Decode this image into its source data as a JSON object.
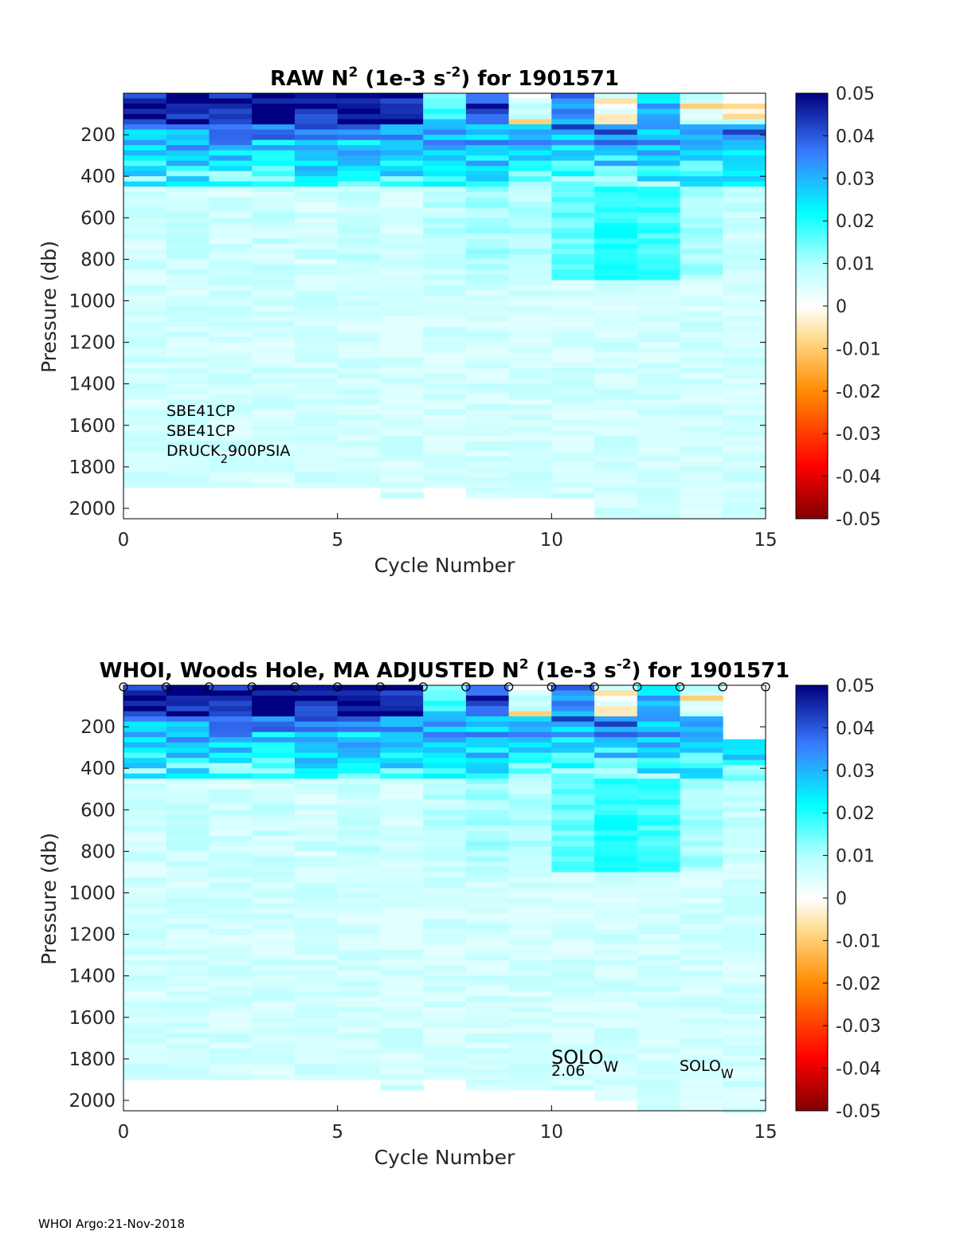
{
  "footer": "WHOI Argo:21-Nov-2018",
  "colorbar": {
    "ticks": [
      "0.05",
      "0.04",
      "0.03",
      "0.02",
      "0.01",
      "0",
      "-0.01",
      "-0.02",
      "-0.03",
      "-0.04",
      "-0.05"
    ]
  },
  "chart_data": [
    {
      "type": "heatmap",
      "title_parts": {
        "a": "RAW N",
        "sup1": "2",
        "b": " (1e-3 s",
        "sup2": "-2",
        "c": ") for 1901571"
      },
      "xlabel": "Cycle Number",
      "ylabel": "Pressure (db)",
      "xlim": [
        0,
        15
      ],
      "ylim": [
        0,
        2050
      ],
      "y_reversed": true,
      "xticks": [
        "0",
        "5",
        "10",
        "15"
      ],
      "yticks": [
        "200",
        "400",
        "600",
        "800",
        "1000",
        "1200",
        "1400",
        "1600",
        "1800",
        "2000"
      ],
      "clim": [
        -0.05,
        0.05
      ],
      "colormap": "jet-like with white center",
      "x_cycles": [
        0,
        1,
        2,
        3,
        4,
        5,
        6,
        7,
        8,
        9,
        10,
        11,
        12,
        13,
        14
      ],
      "max_pressure": [
        1900,
        1900,
        1900,
        1900,
        1900,
        1900,
        1950,
        1900,
        1950,
        1950,
        1950,
        2050,
        2050,
        2050,
        2050
      ],
      "shallow_n2": [
        0.05,
        0.05,
        0.05,
        0.05,
        0.05,
        0.05,
        0.05,
        0.02,
        0.04,
        0.0,
        0.03,
        0.0,
        0.03,
        0.0,
        0.0
      ],
      "deep_n2": [
        0.006,
        0.007,
        0.006,
        0.007,
        0.006,
        0.008,
        0.005,
        0.008,
        0.01,
        0.009,
        0.015,
        0.02,
        0.018,
        0.01,
        0.007
      ],
      "annotations": [
        "SBE41CP",
        "SBE41CP",
        "DRUCK",
        "2",
        "900PSIA"
      ]
    },
    {
      "type": "heatmap",
      "title_parts": {
        "a": "WHOI, Woods Hole, MA  ADJUSTED N",
        "sup1": "2",
        "b": " (1e-3 s",
        "sup2": "-2",
        "c": ") for 1901571"
      },
      "xlabel": "Cycle Number",
      "ylabel": "Pressure (db)",
      "xlim": [
        0,
        15
      ],
      "ylim": [
        0,
        2050
      ],
      "y_reversed": true,
      "xticks": [
        "0",
        "5",
        "10",
        "15"
      ],
      "yticks": [
        "200",
        "400",
        "600",
        "800",
        "1000",
        "1200",
        "1400",
        "1600",
        "1800",
        "2000"
      ],
      "clim": [
        -0.05,
        0.05
      ],
      "colormap": "jet-like with white center",
      "x_cycles": [
        0,
        1,
        2,
        3,
        4,
        5,
        6,
        7,
        8,
        9,
        10,
        11,
        12,
        13,
        14
      ],
      "max_pressure": [
        1900,
        1900,
        1900,
        1900,
        1900,
        1900,
        1950,
        1900,
        1950,
        1950,
        1950,
        2000,
        2050,
        2050,
        2050
      ],
      "shallow_n2": [
        0.05,
        0.05,
        0.05,
        0.05,
        0.05,
        0.05,
        0.05,
        0.02,
        0.04,
        0.0,
        0.03,
        0.0,
        0.03,
        0.0,
        0.0
      ],
      "deep_n2": [
        0.006,
        0.007,
        0.006,
        0.007,
        0.006,
        0.008,
        0.005,
        0.008,
        0.01,
        0.009,
        0.015,
        0.02,
        0.018,
        0.01,
        0.007
      ],
      "markers": {
        "symbol": "o",
        "x": [
          0,
          1,
          2,
          3,
          4,
          5,
          6,
          7,
          8,
          9,
          10,
          11,
          12,
          13,
          14,
          15
        ]
      },
      "annotations": [
        "SOLO",
        "W",
        "2.06",
        "SOLO",
        "W"
      ]
    }
  ]
}
